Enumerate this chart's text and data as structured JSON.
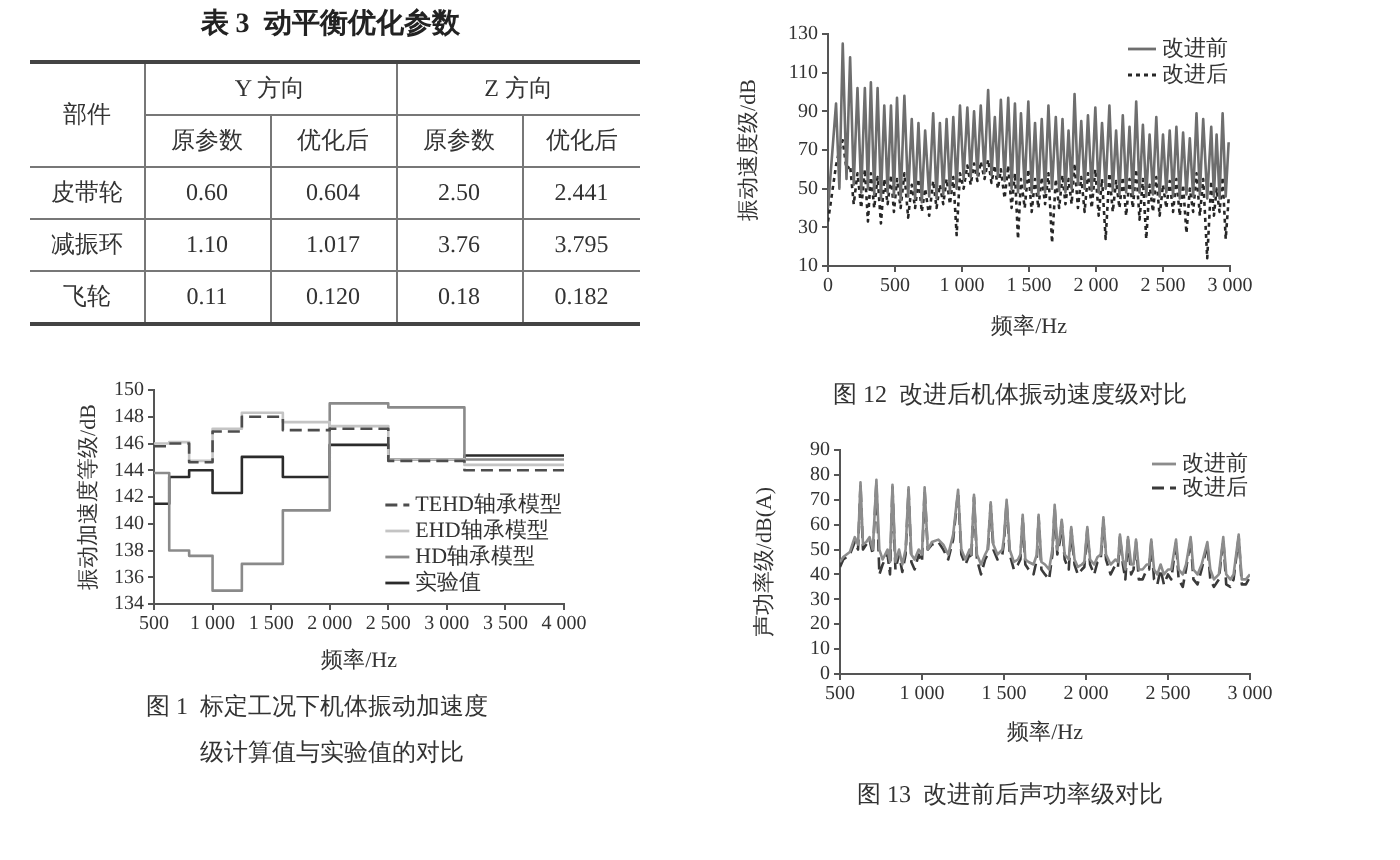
{
  "chart_data": [
    {
      "type": "other",
      "title": "表 3  动平衡优化参数",
      "annotations": [
        "部件",
        "Y 方向",
        "Z 方向",
        "原参数",
        "优化后",
        "原参数",
        "优化后",
        "皮带轮",
        "0.60",
        "0.604",
        "2.50",
        "2.441",
        "减振环",
        "1.10",
        "1.017",
        "3.76",
        "3.795",
        "飞轮",
        "0.11",
        "0.120",
        "0.18",
        "0.182"
      ]
    },
    {
      "type": "step",
      "title": "图 1  标定工况下机体振动加速度级计算值与实验值的对比",
      "xlabel": "频率/Hz",
      "ylabel": "振动加速度等级/dB",
      "x": [
        500,
        630,
        800,
        1000,
        1250,
        1600,
        2000,
        2500,
        3150,
        4000
      ],
      "series": [
        {
          "name": "TEHD轴承模型",
          "color": "#4d4d4d",
          "line_style": "dashed",
          "values": [
            145.8,
            146.0,
            144.6,
            146.9,
            148.0,
            147.0,
            147.1,
            144.7,
            144.0,
            144.0
          ]
        },
        {
          "name": "EHD轴承模型",
          "color": "#c4c4c4",
          "values": [
            146.0,
            146.1,
            144.7,
            147.1,
            148.3,
            147.6,
            147.3,
            144.8,
            144.4,
            144.4
          ]
        },
        {
          "name": "HD轴承模型",
          "color": "#8a8a8a",
          "values": [
            143.8,
            138.0,
            137.6,
            135.0,
            137.0,
            141.0,
            149.0,
            148.7,
            144.8,
            144.8
          ]
        },
        {
          "name": "实验值",
          "color": "#2b2b2b",
          "values": [
            141.5,
            143.5,
            144.0,
            142.3,
            145.0,
            143.5,
            145.9,
            144.8,
            145.1,
            145.1
          ]
        }
      ],
      "xlim": [
        500,
        4000
      ],
      "ylim": [
        134,
        150
      ],
      "xticks": [
        {
          "value": 500,
          "label": "500"
        },
        {
          "value": 1000,
          "label": "1 000"
        },
        {
          "value": 1500,
          "label": "1 500"
        },
        {
          "value": 2000,
          "label": "2 000"
        },
        {
          "value": 2500,
          "label": "2 500"
        },
        {
          "value": 3000,
          "label": "3 000"
        },
        {
          "value": 3500,
          "label": "3 500"
        },
        {
          "value": 4000,
          "label": "4 000"
        }
      ],
      "yticks": [
        134,
        136,
        138,
        140,
        142,
        144,
        146,
        148,
        150
      ],
      "legend": "bottom right"
    },
    {
      "type": "line",
      "title": "图 12  改进后机体振动速度级对比",
      "xlabel": "频率/Hz",
      "ylabel": "振动速度级/dB",
      "x": [
        0,
        60,
        85,
        110,
        138,
        165,
        192,
        220,
        248,
        275,
        298,
        320,
        345,
        370,
        395,
        420,
        445,
        470,
        492,
        515,
        542,
        570,
        598,
        625,
        650,
        675,
        700,
        725,
        755,
        785,
        810,
        835,
        860,
        885,
        910,
        935,
        960,
        985,
        1012,
        1040,
        1065,
        1090,
        1115,
        1140,
        1168,
        1195,
        1220,
        1245,
        1268,
        1290,
        1318,
        1345,
        1370,
        1395,
        1418,
        1440,
        1468,
        1495,
        1520,
        1545,
        1570,
        1595,
        1620,
        1645,
        1672,
        1700,
        1725,
        1750,
        1772,
        1795,
        1818,
        1840,
        1865,
        1890,
        1915,
        1940,
        1968,
        1995,
        2020,
        2045,
        2072,
        2100,
        2125,
        2150,
        2175,
        2200,
        2225,
        2250,
        2275,
        2300,
        2325,
        2350,
        2375,
        2400,
        2425,
        2450,
        2475,
        2500,
        2525,
        2550,
        2575,
        2600,
        2625,
        2650,
        2675,
        2700,
        2725,
        2750,
        2775,
        2800,
        2830,
        2860,
        2880,
        2900,
        2922,
        2945,
        2968,
        2990
      ],
      "series": [
        {
          "name": "改进前",
          "color": "#6e6e6e",
          "values": [
            40,
            94,
            50,
            125,
            55,
            118,
            52,
            102,
            48,
            102,
            50,
            105,
            47,
            102,
            45,
            93,
            48,
            93,
            46,
            97,
            44,
            98,
            46,
            86,
            45,
            84,
            43,
            80,
            46,
            89,
            45,
            84,
            47,
            86,
            48,
            87,
            50,
            93,
            55,
            92,
            56,
            90,
            57,
            93,
            58,
            101,
            57,
            87,
            56,
            96,
            54,
            97,
            50,
            94,
            48,
            89,
            50,
            95,
            48,
            84,
            47,
            86,
            48,
            93,
            50,
            87,
            49,
            86,
            48,
            80,
            50,
            99,
            52,
            85,
            50,
            88,
            49,
            92,
            48,
            84,
            50,
            93,
            49,
            80,
            47,
            88,
            48,
            82,
            47,
            95,
            48,
            83,
            46,
            78,
            47,
            87,
            46,
            78,
            48,
            80,
            46,
            82,
            45,
            79,
            47,
            76,
            46,
            89,
            47,
            86,
            45,
            82,
            46,
            78,
            45,
            89,
            46,
            74
          ]
        },
        {
          "name": "改进后",
          "color": "#262626",
          "line_style": "dotted",
          "values": [
            33,
            62,
            70,
            75,
            60,
            62,
            42,
            58,
            40,
            60,
            33,
            58,
            40,
            56,
            32,
            55,
            42,
            57,
            38,
            55,
            40,
            58,
            35,
            52,
            40,
            55,
            38,
            50,
            36,
            54,
            40,
            52,
            42,
            55,
            42,
            56,
            26,
            58,
            50,
            62,
            52,
            63,
            54,
            64,
            55,
            65,
            53,
            62,
            50,
            60,
            45,
            62,
            40,
            58,
            24,
            55,
            40,
            60,
            38,
            55,
            40,
            56,
            42,
            58,
            22,
            55,
            40,
            57,
            42,
            55,
            42,
            63,
            40,
            56,
            38,
            58,
            40,
            60,
            36,
            55,
            24,
            58,
            38,
            54,
            40,
            56,
            36,
            55,
            40,
            60,
            34,
            55,
            24,
            52,
            38,
            56,
            36,
            52,
            40,
            54,
            38,
            55,
            36,
            52,
            27,
            50,
            38,
            58,
            36,
            55,
            14,
            54,
            36,
            50,
            38,
            56,
            24,
            45
          ]
        }
      ],
      "xlim": [
        0,
        3000
      ],
      "ylim": [
        10,
        130
      ],
      "xticks": [
        {
          "value": 0,
          "label": "0"
        },
        {
          "value": 500,
          "label": "500"
        },
        {
          "value": 1000,
          "label": "1 000"
        },
        {
          "value": 1500,
          "label": "1 500"
        },
        {
          "value": 2000,
          "label": "2 000"
        },
        {
          "value": 2500,
          "label": "2 500"
        },
        {
          "value": 3000,
          "label": "3 000"
        }
      ],
      "yticks": [
        10,
        30,
        50,
        70,
        90,
        110,
        130
      ],
      "legend": "top right"
    },
    {
      "type": "line",
      "title": "图 13  改进前后声功率级对比",
      "xlabel": "频率/Hz",
      "ylabel": "声功率级/dB(A)",
      "x": [
        500,
        520,
        560,
        590,
        610,
        625,
        640,
        660,
        680,
        700,
        722,
        740,
        760,
        790,
        805,
        820,
        838,
        860,
        880,
        900,
        918,
        935,
        955,
        980,
        1000,
        1016,
        1035,
        1060,
        1100,
        1130,
        1160,
        1190,
        1220,
        1240,
        1265,
        1290,
        1300,
        1317,
        1335,
        1360,
        1385,
        1400,
        1419,
        1435,
        1460,
        1490,
        1500,
        1516,
        1535,
        1560,
        1585,
        1600,
        1614,
        1630,
        1650,
        1680,
        1700,
        1711,
        1728,
        1750,
        1775,
        1795,
        1809,
        1825,
        1840,
        1852,
        1870,
        1895,
        1910,
        1930,
        1950,
        1975,
        1990,
        2008,
        2025,
        2050,
        2070,
        2090,
        2106,
        2122,
        2150,
        2180,
        2195,
        2207,
        2225,
        2240,
        2256,
        2275,
        2290,
        2305,
        2322,
        2345,
        2370,
        2385,
        2398,
        2415,
        2435,
        2455,
        2475,
        2500,
        2520,
        2549,
        2565,
        2590,
        2610,
        2638,
        2655,
        2680,
        2705,
        2740,
        2758,
        2780,
        2810,
        2837,
        2855,
        2880,
        2900,
        2931,
        2950,
        2975,
        3000
      ],
      "series": [
        {
          "name": "改进前",
          "color": "#8c8c8c",
          "values": [
            45,
            47,
            49,
            55,
            52,
            77,
            52,
            53,
            55,
            50,
            78,
            50,
            46,
            50,
            45,
            76,
            45,
            50,
            44,
            50,
            75,
            48,
            46,
            50,
            48,
            75,
            50,
            53,
            54,
            52,
            48,
            56,
            74,
            50,
            46,
            50,
            48,
            72,
            48,
            44,
            48,
            50,
            69,
            52,
            48,
            50,
            55,
            70,
            50,
            45,
            46,
            48,
            64,
            46,
            45,
            44,
            48,
            64,
            45,
            44,
            42,
            50,
            68,
            50,
            55,
            62,
            48,
            46,
            59,
            46,
            43,
            44,
            45,
            59,
            46,
            44,
            47,
            48,
            63,
            48,
            44,
            46,
            45,
            56,
            46,
            42,
            55,
            44,
            44,
            54,
            42,
            42,
            44,
            44,
            54,
            42,
            40,
            44,
            40,
            42,
            42,
            54,
            42,
            40,
            44,
            55,
            42,
            40,
            44,
            53,
            42,
            38,
            40,
            55,
            40,
            38,
            40,
            56,
            38,
            38,
            40
          ]
        },
        {
          "name": "改进后",
          "color": "#3a3a3a",
          "line_style": "dashed",
          "values": [
            43,
            46,
            48,
            53,
            50,
            76,
            50,
            52,
            54,
            48,
            77,
            40,
            44,
            48,
            40,
            75,
            42,
            48,
            41,
            48,
            74,
            45,
            42,
            48,
            45,
            74,
            50,
            52,
            53,
            50,
            46,
            54,
            73,
            48,
            44,
            48,
            46,
            71,
            46,
            40,
            46,
            48,
            68,
            50,
            46,
            48,
            53,
            69,
            48,
            42,
            44,
            46,
            63,
            44,
            42,
            40,
            46,
            63,
            42,
            40,
            38,
            48,
            67,
            48,
            53,
            61,
            46,
            42,
            58,
            44,
            40,
            42,
            43,
            58,
            44,
            40,
            45,
            46,
            62,
            46,
            40,
            44,
            43,
            55,
            44,
            38,
            54,
            40,
            42,
            53,
            38,
            38,
            42,
            42,
            53,
            38,
            36,
            42,
            36,
            40,
            38,
            53,
            38,
            35,
            42,
            54,
            38,
            36,
            42,
            52,
            38,
            35,
            38,
            54,
            36,
            35,
            38,
            55,
            36,
            36,
            39
          ]
        }
      ],
      "xlim": [
        500,
        3000
      ],
      "ylim": [
        0,
        90
      ],
      "xticks": [
        {
          "value": 500,
          "label": "500"
        },
        {
          "value": 1000,
          "label": "1 000"
        },
        {
          "value": 1500,
          "label": "1 500"
        },
        {
          "value": 2000,
          "label": "2 000"
        },
        {
          "value": 2500,
          "label": "2 500"
        },
        {
          "value": 3000,
          "label": "3 000"
        }
      ],
      "yticks": [
        0,
        10,
        20,
        30,
        40,
        50,
        60,
        70,
        80,
        90
      ],
      "legend": "top right"
    }
  ]
}
